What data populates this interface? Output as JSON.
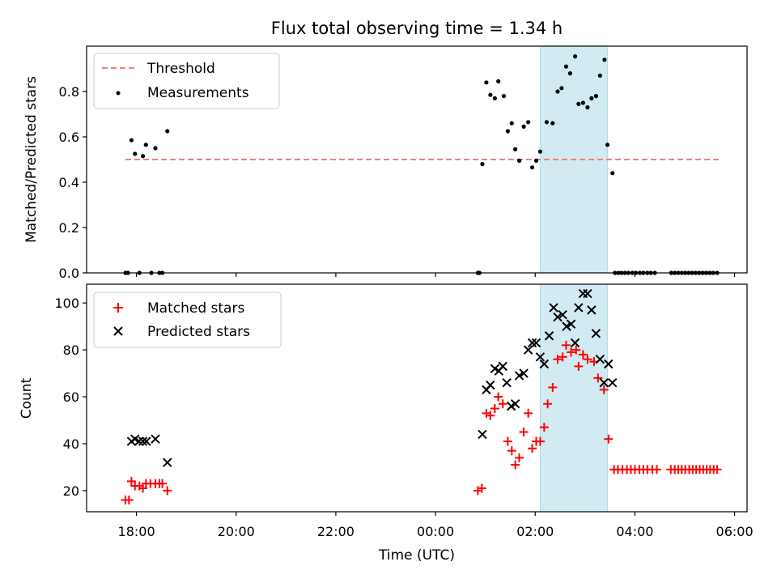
{
  "chart_data": [
    {
      "type": "scatter",
      "title": "Flux total observing time = 1.34 h",
      "ylabel": "Matched/Predicted stars",
      "xlabel": "",
      "ylim": [
        0,
        1.0
      ],
      "yticks": [
        "0.0",
        "0.2",
        "0.4",
        "0.6",
        "0.8"
      ],
      "ytick_values": [
        0.0,
        0.2,
        0.4,
        0.6,
        0.8
      ],
      "grid": false,
      "legend_position": "top-left",
      "threshold": {
        "name": "Threshold",
        "value": 0.5,
        "x_range": [
          17.78,
          29.72
        ],
        "color": "#f08080"
      },
      "highlight_span": {
        "x_range": [
          26.1,
          27.45
        ],
        "color": "#add8e6"
      },
      "series": [
        {
          "name": "Measurements",
          "color": "#000000",
          "points": [
            [
              17.78,
              0
            ],
            [
              17.83,
              0
            ],
            [
              17.9,
              0.585
            ],
            [
              17.97,
              0.525
            ],
            [
              18.06,
              0
            ],
            [
              18.13,
              0.515
            ],
            [
              18.19,
              0.565
            ],
            [
              18.3,
              0
            ],
            [
              18.38,
              0.55
            ],
            [
              18.46,
              0
            ],
            [
              18.52,
              0
            ],
            [
              18.62,
              0.625
            ],
            [
              24.85,
              0
            ],
            [
              24.88,
              0
            ],
            [
              24.94,
              0.48
            ],
            [
              25.02,
              0.84
            ],
            [
              25.1,
              0.785
            ],
            [
              25.19,
              0.77
            ],
            [
              25.26,
              0.845
            ],
            [
              25.37,
              0.78
            ],
            [
              25.45,
              0.625
            ],
            [
              25.53,
              0.66
            ],
            [
              25.6,
              0.545
            ],
            [
              25.68,
              0.495
            ],
            [
              25.77,
              0.645
            ],
            [
              25.86,
              0.665
            ],
            [
              25.94,
              0.465
            ],
            [
              26.02,
              0.495
            ],
            [
              26.1,
              0.535
            ],
            [
              26.23,
              0.665
            ],
            [
              26.35,
              0.66
            ],
            [
              26.45,
              0.8
            ],
            [
              26.53,
              0.815
            ],
            [
              26.62,
              0.91
            ],
            [
              26.7,
              0.88
            ],
            [
              26.8,
              0.955
            ],
            [
              26.87,
              0.745
            ],
            [
              26.96,
              0.75
            ],
            [
              27.05,
              0.73
            ],
            [
              27.13,
              0.77
            ],
            [
              27.22,
              0.78
            ],
            [
              27.3,
              0.87
            ],
            [
              27.39,
              0.94
            ],
            [
              27.45,
              0.565
            ],
            [
              27.55,
              0.44
            ],
            [
              27.6,
              0
            ],
            [
              27.67,
              0
            ],
            [
              27.73,
              0
            ],
            [
              27.8,
              0
            ],
            [
              27.87,
              0
            ],
            [
              27.95,
              0
            ],
            [
              28.02,
              0
            ],
            [
              28.1,
              0
            ],
            [
              28.17,
              0
            ],
            [
              28.25,
              0
            ],
            [
              28.32,
              0
            ],
            [
              28.4,
              0
            ],
            [
              28.73,
              0
            ],
            [
              28.8,
              0
            ],
            [
              28.87,
              0
            ],
            [
              28.94,
              0
            ],
            [
              29.01,
              0
            ],
            [
              29.08,
              0
            ],
            [
              29.15,
              0
            ],
            [
              29.22,
              0
            ],
            [
              29.29,
              0
            ],
            [
              29.36,
              0
            ],
            [
              29.43,
              0
            ],
            [
              29.5,
              0
            ],
            [
              29.57,
              0
            ],
            [
              29.65,
              0
            ]
          ]
        }
      ]
    },
    {
      "type": "scatter",
      "title": "",
      "ylabel": "Count",
      "xlabel": "Time (UTC)",
      "xlim": [
        17.0,
        30.25
      ],
      "ylim": [
        11,
        108
      ],
      "xticks": [
        "18:00",
        "20:00",
        "22:00",
        "00:00",
        "02:00",
        "04:00",
        "06:00"
      ],
      "xtick_values": [
        18,
        20,
        22,
        24,
        26,
        28,
        30
      ],
      "yticks": [
        "20",
        "40",
        "60",
        "80",
        "100"
      ],
      "ytick_values": [
        20,
        40,
        60,
        80,
        100
      ],
      "grid": false,
      "legend_position": "top-left",
      "highlight_span": {
        "x_range": [
          26.1,
          27.45
        ],
        "color": "#add8e6"
      },
      "series": [
        {
          "name": "Matched stars",
          "marker": "plus",
          "color": "#ff0000",
          "points": [
            [
              17.78,
              16
            ],
            [
              17.85,
              16
            ],
            [
              17.9,
              24
            ],
            [
              17.97,
              22
            ],
            [
              18.06,
              22
            ],
            [
              18.13,
              21
            ],
            [
              18.19,
              23
            ],
            [
              18.28,
              23
            ],
            [
              18.38,
              23
            ],
            [
              18.46,
              23
            ],
            [
              18.52,
              23
            ],
            [
              18.62,
              20
            ],
            [
              24.85,
              20
            ],
            [
              24.93,
              21
            ],
            [
              25.02,
              53
            ],
            [
              25.1,
              52
            ],
            [
              25.19,
              55
            ],
            [
              25.26,
              60
            ],
            [
              25.35,
              57
            ],
            [
              25.45,
              41
            ],
            [
              25.53,
              37
            ],
            [
              25.6,
              31
            ],
            [
              25.68,
              34
            ],
            [
              25.77,
              45
            ],
            [
              25.86,
              53
            ],
            [
              25.94,
              38
            ],
            [
              26.02,
              41
            ],
            [
              26.1,
              41
            ],
            [
              26.18,
              47
            ],
            [
              26.25,
              57
            ],
            [
              26.35,
              64
            ],
            [
              26.45,
              76
            ],
            [
              26.55,
              77
            ],
            [
              26.62,
              82
            ],
            [
              26.72,
              79
            ],
            [
              26.82,
              80
            ],
            [
              26.87,
              73
            ],
            [
              26.96,
              78
            ],
            [
              27.05,
              76
            ],
            [
              27.18,
              75
            ],
            [
              27.26,
              68
            ],
            [
              27.38,
              63
            ],
            [
              27.47,
              42
            ],
            [
              27.58,
              29
            ],
            [
              27.66,
              29
            ],
            [
              27.75,
              29
            ],
            [
              27.84,
              29
            ],
            [
              27.92,
              29
            ],
            [
              28.0,
              29
            ],
            [
              28.09,
              29
            ],
            [
              28.17,
              29
            ],
            [
              28.25,
              29
            ],
            [
              28.35,
              29
            ],
            [
              28.44,
              29
            ],
            [
              28.72,
              29
            ],
            [
              28.8,
              29
            ],
            [
              28.87,
              29
            ],
            [
              28.94,
              29
            ],
            [
              29.01,
              29
            ],
            [
              29.09,
              29
            ],
            [
              29.16,
              29
            ],
            [
              29.23,
              29
            ],
            [
              29.3,
              29
            ],
            [
              29.37,
              29
            ],
            [
              29.44,
              29
            ],
            [
              29.51,
              29
            ],
            [
              29.58,
              29
            ],
            [
              29.65,
              29
            ]
          ]
        },
        {
          "name": "Predicted stars",
          "marker": "x",
          "color": "#000000",
          "points": [
            [
              17.9,
              41
            ],
            [
              17.97,
              42
            ],
            [
              18.05,
              41
            ],
            [
              18.13,
              41
            ],
            [
              18.2,
              41
            ],
            [
              18.38,
              42
            ],
            [
              18.62,
              32
            ],
            [
              24.94,
              44
            ],
            [
              25.02,
              63
            ],
            [
              25.1,
              65
            ],
            [
              25.19,
              72
            ],
            [
              25.27,
              71
            ],
            [
              25.35,
              73
            ],
            [
              25.43,
              66
            ],
            [
              25.52,
              56
            ],
            [
              25.6,
              57
            ],
            [
              25.68,
              69
            ],
            [
              25.77,
              70
            ],
            [
              25.86,
              80
            ],
            [
              25.94,
              83
            ],
            [
              26.02,
              83
            ],
            [
              26.1,
              77
            ],
            [
              26.18,
              74
            ],
            [
              26.28,
              86
            ],
            [
              26.37,
              98
            ],
            [
              26.45,
              94
            ],
            [
              26.55,
              95
            ],
            [
              26.63,
              90
            ],
            [
              26.72,
              91
            ],
            [
              26.8,
              83
            ],
            [
              26.87,
              98
            ],
            [
              26.96,
              104
            ],
            [
              27.05,
              104
            ],
            [
              27.13,
              97
            ],
            [
              27.22,
              87
            ],
            [
              27.3,
              76
            ],
            [
              27.38,
              66
            ],
            [
              27.47,
              74
            ],
            [
              27.55,
              66
            ]
          ]
        }
      ]
    }
  ]
}
